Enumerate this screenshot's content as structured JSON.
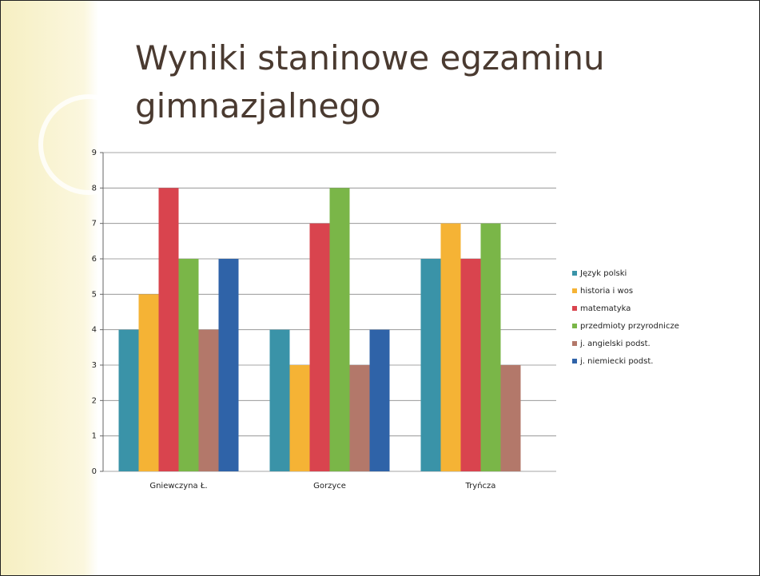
{
  "chart_data": {
    "type": "bar",
    "title": "Wyniki staninowe egzaminu gimnazjalnego",
    "categories": [
      "Gniewczyna Ł.",
      "Gorzyce",
      "Tryńcza"
    ],
    "series": [
      {
        "name": "Język polski",
        "color": "#3a93a8",
        "values": [
          4,
          4,
          6
        ]
      },
      {
        "name": "historia i wos",
        "color": "#f5b335",
        "values": [
          5,
          3,
          7
        ]
      },
      {
        "name": "matematyka",
        "color": "#d9444e",
        "values": [
          8,
          7,
          6
        ]
      },
      {
        "name": "przedmioty przyrodnicze",
        "color": "#7ab648",
        "values": [
          6,
          8,
          7
        ]
      },
      {
        "name": "j. angielski podst.",
        "color": "#b3786a",
        "values": [
          4,
          3,
          3
        ]
      },
      {
        "name": "j. niemiecki podst.",
        "color": "#2f63a8",
        "values": [
          6,
          4,
          null
        ]
      }
    ],
    "ylim": [
      0,
      9
    ],
    "yticks": [
      0,
      1,
      2,
      3,
      4,
      5,
      6,
      7,
      8,
      9
    ],
    "grid": true,
    "legend": "right"
  }
}
